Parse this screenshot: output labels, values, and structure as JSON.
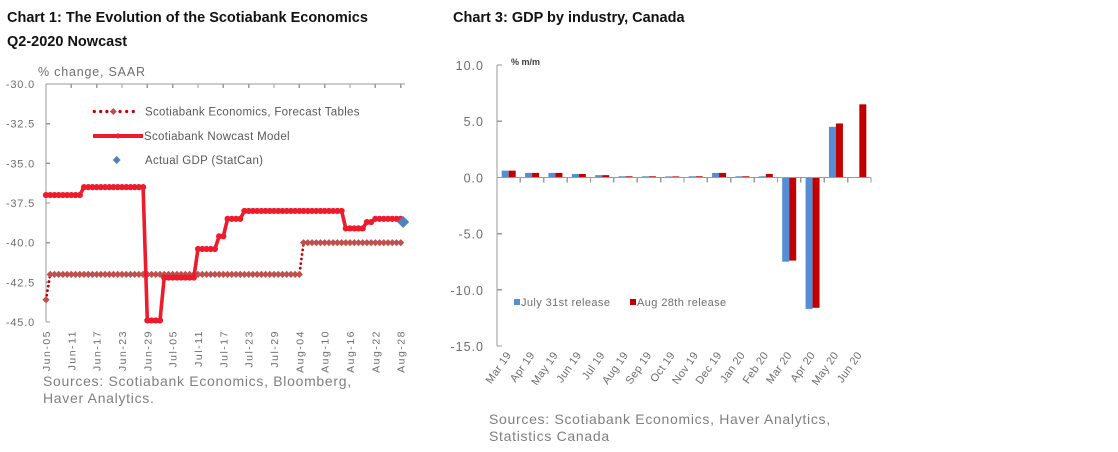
{
  "chart_data": [
    {
      "type": "line",
      "title": "Chart 1: The Evolution of the Scotiabank Economics Q2-2020 Nowcast",
      "xlabel": "",
      "ylabel": "% change, SAAR",
      "ylim": [
        -45.0,
        -30.0
      ],
      "yticks": [
        "-30.0",
        "-32.5",
        "-35.0",
        "-37.5",
        "-40.0",
        "-42.5",
        "-45.0"
      ],
      "xlim": [
        "Jun-05",
        "Aug-28"
      ],
      "xticks": [
        "Jun-05",
        "Jun-11",
        "Jun-17",
        "Jun-23",
        "Jun-29",
        "Jul-05",
        "Jul-11",
        "Jul-17",
        "Jul-23",
        "Jul-29",
        "Aug-04",
        "Aug-10",
        "Aug-16",
        "Aug-22",
        "Aug-28"
      ],
      "grid": false,
      "legend": "top-left",
      "series": [
        {
          "name": "Scotiabank Economics, Forecast Tables",
          "style": "dotted-markers",
          "color": "#C0504D",
          "line_color": "#C00000",
          "steps": [
            {
              "from": "Jun-05",
              "to": "Jun-05",
              "value": -43.6
            },
            {
              "from": "Jun-06",
              "to": "Aug-04",
              "value": -42.0
            },
            {
              "from": "Aug-05",
              "to": "Aug-28",
              "value": -40.0
            }
          ]
        },
        {
          "name": "Scotiabank Nowcast Model",
          "style": "line-markers",
          "color": "#EE1B2D",
          "steps": [
            {
              "from": "Jun-05",
              "to": "Jun-13",
              "value": -37.0
            },
            {
              "from": "Jun-14",
              "to": "Jun-28",
              "value": -36.5
            },
            {
              "from": "Jun-29",
              "to": "Jul-02",
              "value": -44.9
            },
            {
              "from": "Jul-03",
              "to": "Jul-10",
              "value": -42.2
            },
            {
              "from": "Jul-11",
              "to": "Jul-15",
              "value": -40.4
            },
            {
              "from": "Jul-16",
              "to": "Jul-17",
              "value": -39.6
            },
            {
              "from": "Jul-18",
              "to": "Jul-21",
              "value": -38.5
            },
            {
              "from": "Jul-22",
              "to": "Aug-14",
              "value": -38.0
            },
            {
              "from": "Aug-15",
              "to": "Aug-19",
              "value": -39.1
            },
            {
              "from": "Aug-20",
              "to": "Aug-21",
              "value": -38.7
            },
            {
              "from": "Aug-22",
              "to": "Aug-28",
              "value": -38.5
            }
          ]
        },
        {
          "name": "Actual GDP (StatCan)",
          "style": "diamond",
          "color": "#4F81BD",
          "points": [
            {
              "x": "Aug-28",
              "y": -38.7
            }
          ]
        }
      ],
      "sources": [
        "Sources: Scotiabank Economics, Bloomberg,",
        "Haver Analytics."
      ]
    },
    {
      "type": "bar",
      "title": "Chart 3: GDP by industry, Canada",
      "xlabel": "",
      "ylabel": "% m/m",
      "ylim": [
        -15.0,
        10.0
      ],
      "yticks": [
        "10.0",
        "5.0",
        "0.0",
        "-5.0",
        "-10.0",
        "-15.0"
      ],
      "categories": [
        "Mar 19",
        "Apr 19",
        "May 19",
        "Jun 19",
        "Jul 19",
        "Aug 19",
        "Sep 19",
        "Oct 19",
        "Nov 19",
        "Dec 19",
        "Jan 20",
        "Feb 20",
        "Mar 20",
        "Apr 20",
        "May 20",
        "Jun 20"
      ],
      "grid": false,
      "legend": "bottom-left",
      "series": [
        {
          "name": "July 31st release",
          "color": "#558ED5",
          "values": [
            0.6,
            0.4,
            0.4,
            0.3,
            0.2,
            0.1,
            0.1,
            0.0,
            0.1,
            0.4,
            0.1,
            0.1,
            -7.5,
            -11.7,
            4.5,
            null
          ]
        },
        {
          "name": "Aug 28th release",
          "color": "#C00000",
          "values": [
            0.6,
            0.4,
            0.4,
            0.3,
            0.2,
            0.1,
            0.1,
            0.0,
            0.1,
            0.4,
            0.1,
            0.3,
            -7.4,
            -11.6,
            4.8,
            6.5
          ]
        }
      ],
      "sources": [
        "Sources: Scotiabank Economics, Haver Analytics,",
        "Statistics Canada"
      ]
    }
  ]
}
